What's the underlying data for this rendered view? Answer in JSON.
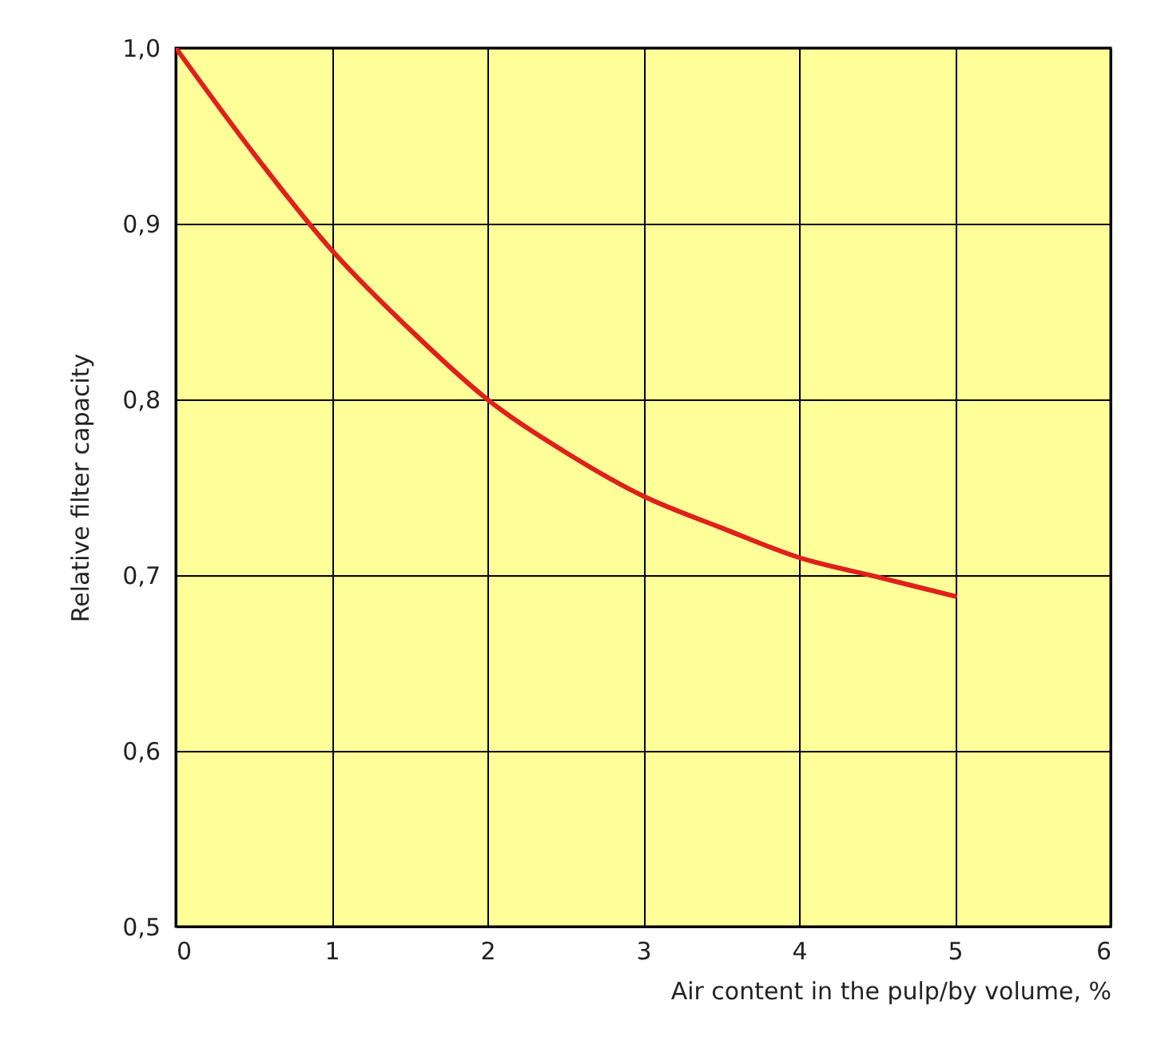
{
  "chart_data": {
    "type": "line",
    "xlabel": "Air content in the pulp/by volume, %",
    "ylabel": "Relative filter capacity",
    "x": [
      0,
      0.5,
      1,
      1.5,
      2,
      2.5,
      3,
      3.5,
      4,
      4.5,
      5
    ],
    "series": [
      {
        "color": "#e0201a",
        "values": [
          1.0,
          0.94,
          0.885,
          0.84,
          0.8,
          0.77,
          0.745,
          0.727,
          0.71,
          0.699,
          0.688
        ]
      }
    ],
    "xlim": [
      0,
      6
    ],
    "xticks": [
      0,
      1,
      2,
      3,
      4,
      5,
      6
    ],
    "ylim": [
      0.5,
      1.0
    ],
    "yticks": [
      {
        "value": 0.5,
        "label": "0,5"
      },
      {
        "value": 0.6,
        "label": "0,6"
      },
      {
        "value": 0.7,
        "label": "0,7"
      },
      {
        "value": 0.8,
        "label": "0,8"
      },
      {
        "value": 0.9,
        "label": "0,9"
      },
      {
        "value": 1.0,
        "label": "1,0"
      }
    ],
    "grid": true,
    "marker": "none",
    "line_style": "solid"
  }
}
